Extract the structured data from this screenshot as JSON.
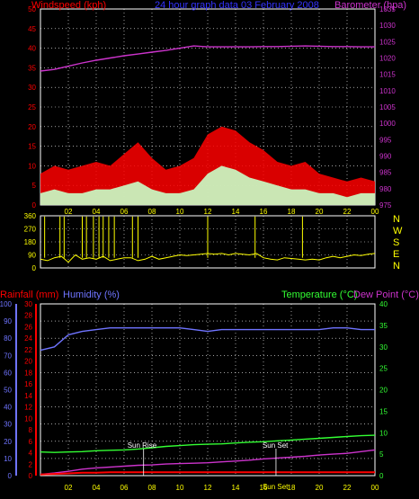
{
  "header": {
    "left_title": "Windspeed (kph)",
    "center_title": "24 hour graph data  03 February 2008",
    "right_title": "Barometer (hpa)"
  },
  "lower_header": {
    "rain": "Rainfall (mm)",
    "humidity": "Humidity (%)",
    "temperature": "Temperature (°C)",
    "dew_point": "Dew Point (°C)"
  },
  "compass": [
    "N",
    "W",
    "S",
    "E",
    "N"
  ],
  "annotations": {
    "sunrise": "Sun Rise",
    "sunset": "Sun Set",
    "sunset_extra": "Sun Set"
  },
  "colors": {
    "windspeed": "#ff0000",
    "gust_fill": "#c8ffc8",
    "barometer": "#cc33cc",
    "direction": "#ffff00",
    "rain": "#ff0000",
    "humidity": "#6f74ff",
    "temperature": "#33ff33",
    "dewpoint": "#cc33cc",
    "grid": "#ffffff",
    "frame": "#ffffff"
  },
  "chart_data": [
    {
      "type": "area",
      "name": "wind-barometer",
      "title": "24 hour graph data  03 February 2008",
      "x_ticks": [
        "02",
        "04",
        "06",
        "08",
        "10",
        "12",
        "14",
        "16",
        "18",
        "20",
        "22",
        "00"
      ],
      "left_axis": {
        "label": "Windspeed (kph)",
        "ticks": [
          0,
          5,
          10,
          15,
          20,
          25,
          30,
          35,
          40,
          45,
          50
        ],
        "range": [
          0,
          50
        ]
      },
      "right_axis": {
        "label": "Barometer (hpa)",
        "ticks": [
          975,
          980,
          985,
          990,
          995,
          1000,
          1005,
          1010,
          1015,
          1020,
          1025,
          1030,
          1035
        ],
        "range": [
          975,
          1035
        ]
      },
      "barometer_hours": [
        0,
        1,
        2,
        3,
        4,
        5,
        6,
        7,
        8,
        9,
        10,
        11,
        12,
        13,
        14,
        15,
        16,
        17,
        18,
        19,
        20,
        21,
        22,
        23,
        24
      ],
      "barometer": [
        1016,
        1016.5,
        1017.5,
        1018.5,
        1019.3,
        1020,
        1020.7,
        1021.2,
        1021.8,
        1022.3,
        1023,
        1023.7,
        1023.4,
        1023.4,
        1023.4,
        1023.4,
        1023.5,
        1023.5,
        1023.6,
        1023.7,
        1023.6,
        1023.5,
        1023.5,
        1023.4,
        1023.4
      ],
      "wind_avg_hours": [
        0,
        1,
        2,
        3,
        4,
        5,
        6,
        7,
        8,
        9,
        10,
        11,
        12,
        13,
        14,
        15,
        16,
        17,
        18,
        19,
        20,
        21,
        22,
        23,
        24
      ],
      "wind_avg": [
        3,
        4,
        3,
        3,
        4,
        4,
        5,
        6,
        4,
        3,
        3,
        4,
        8,
        10,
        9,
        7,
        6,
        5,
        4,
        4,
        3,
        3,
        2,
        3,
        3
      ],
      "wind_gust_hours": [
        0,
        1,
        2,
        3,
        4,
        5,
        6,
        7,
        8,
        9,
        10,
        11,
        12,
        13,
        14,
        15,
        16,
        17,
        18,
        19,
        20,
        21,
        22,
        23,
        24
      ],
      "wind_gust": [
        8,
        10,
        9,
        10,
        11,
        10,
        13,
        16,
        12,
        9,
        10,
        12,
        18,
        20,
        19,
        16,
        14,
        11,
        10,
        11,
        8,
        7,
        6,
        7,
        6
      ],
      "grid": true
    },
    {
      "type": "line",
      "name": "wind-direction",
      "left_axis": {
        "ticks": [
          0,
          90,
          180,
          270,
          360
        ],
        "range": [
          0,
          360
        ]
      },
      "right_axis": {
        "labels": [
          "N",
          "W",
          "S",
          "E",
          "N"
        ]
      },
      "hours": [
        0,
        0.5,
        1,
        1.5,
        2,
        2.5,
        3,
        3.5,
        4,
        4.5,
        5,
        5.5,
        6,
        6.5,
        7,
        7.5,
        8,
        8.5,
        9,
        9.5,
        10,
        10.5,
        11,
        11.5,
        12,
        12.5,
        13,
        13.5,
        14,
        14.5,
        15,
        15.5,
        16,
        16.5,
        17,
        17.5,
        18,
        18.5,
        19,
        19.5,
        20,
        20.5,
        21,
        21.5,
        22,
        22.5,
        23,
        23.5,
        24
      ],
      "direction": [
        60,
        50,
        70,
        80,
        40,
        90,
        60,
        70,
        60,
        80,
        50,
        60,
        70,
        70,
        50,
        60,
        80,
        60,
        70,
        80,
        90,
        85,
        90,
        95,
        100,
        95,
        100,
        90,
        100,
        95,
        90,
        100,
        70,
        60,
        55,
        70,
        65,
        60,
        55,
        60,
        55,
        70,
        80,
        70,
        80,
        90,
        85,
        95,
        100
      ],
      "spikes_hours": [
        0.3,
        1.4,
        1.7,
        3.0,
        3.3,
        3.8,
        4.2,
        4.5,
        4.9,
        5.3,
        6.6,
        7.0,
        12.0,
        15.4,
        18.8
      ],
      "grid": true
    },
    {
      "type": "line",
      "name": "rain-humidity-temperature",
      "x_ticks": [
        "02",
        "04",
        "06",
        "08",
        "10",
        "12",
        "14",
        "16",
        "18",
        "20",
        "22",
        "00"
      ],
      "rain_axis": {
        "label": "Rainfall (mm)",
        "ticks": [
          0,
          2,
          4,
          6,
          8,
          10,
          12,
          14,
          16,
          18,
          20,
          22,
          24,
          26,
          28,
          30
        ],
        "range": [
          0,
          30
        ]
      },
      "humidity_axis": {
        "label": "Humidity (%)",
        "ticks": [
          0,
          10,
          20,
          30,
          40,
          50,
          60,
          70,
          80,
          90,
          100
        ],
        "range": [
          0,
          100
        ]
      },
      "temp_axis": {
        "label": "Temperature (°C)Dew Point (°C)",
        "ticks": [
          0,
          5,
          10,
          15,
          20,
          25,
          30,
          35,
          40
        ],
        "range": [
          0,
          40
        ]
      },
      "hours": [
        0,
        1,
        2,
        3,
        4,
        5,
        6,
        7,
        8,
        9,
        10,
        11,
        12,
        13,
        14,
        15,
        16,
        17,
        18,
        19,
        20,
        21,
        22,
        23,
        24
      ],
      "humidity": [
        73,
        75,
        82,
        84,
        85,
        86,
        86,
        86,
        86,
        86,
        86,
        85,
        84,
        85,
        85,
        85,
        85,
        85,
        85,
        85,
        85,
        86,
        86,
        85,
        85
      ],
      "temperature": [
        5.5,
        5.4,
        5.5,
        5.6,
        5.8,
        5.9,
        6.0,
        6.2,
        6.5,
        6.8,
        7.0,
        7.2,
        7.3,
        7.4,
        7.6,
        7.8,
        7.9,
        8.1,
        8.3,
        8.5,
        8.7,
        8.9,
        9.1,
        9.3,
        9.4
      ],
      "dew_point": [
        0.3,
        0.6,
        1.0,
        1.5,
        1.8,
        2.0,
        2.2,
        2.4,
        2.5,
        2.7,
        2.8,
        2.9,
        3.0,
        3.2,
        3.4,
        3.6,
        3.9,
        4.1,
        4.3,
        4.5,
        4.8,
        5.0,
        5.2,
        5.6,
        6.0
      ],
      "rain": [
        0.2,
        0.3,
        0.4,
        0.5,
        0.5,
        0.6,
        0.6,
        0.6,
        0.6,
        0.6,
        0.6,
        0.6,
        0.6,
        0.6,
        0.6,
        0.6,
        0.6,
        0.6,
        0.6,
        0.6,
        0.6,
        0.6,
        0.6,
        0.6,
        0.6
      ],
      "sunrise_hour": 7.4,
      "sunset_hour": 16.9,
      "grid": true
    }
  ]
}
